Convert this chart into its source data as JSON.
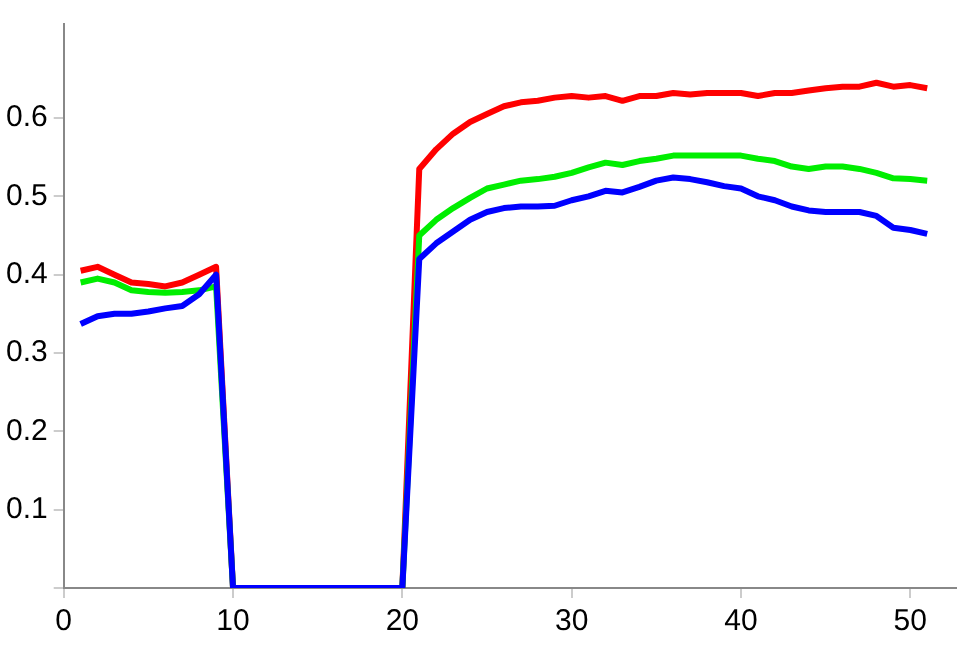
{
  "chart_data": {
    "type": "line",
    "x": [
      1,
      2,
      3,
      4,
      5,
      6,
      7,
      8,
      9,
      10,
      11,
      12,
      13,
      14,
      15,
      16,
      17,
      18,
      19,
      20,
      21,
      22,
      23,
      24,
      25,
      26,
      27,
      28,
      29,
      30,
      31,
      32,
      33,
      34,
      35,
      36,
      37,
      38,
      39,
      40,
      41,
      42,
      43,
      44,
      45,
      46,
      47,
      48,
      49,
      50,
      51
    ],
    "series": [
      {
        "color": "#ff0000",
        "values": [
          0.405,
          0.41,
          0.4,
          0.39,
          0.388,
          0.385,
          0.39,
          0.4,
          0.41,
          0,
          0,
          0,
          0,
          0,
          0,
          0,
          0,
          0,
          0,
          0,
          0.535,
          0.56,
          0.58,
          0.595,
          0.605,
          0.615,
          0.62,
          0.622,
          0.626,
          0.628,
          0.626,
          0.628,
          0.622,
          0.628,
          0.628,
          0.632,
          0.63,
          0.632,
          0.632,
          0.632,
          0.628,
          0.632,
          0.632,
          0.635,
          0.638,
          0.64,
          0.64,
          0.645,
          0.64,
          0.642,
          0.638
        ]
      },
      {
        "color": "#00ee00",
        "values": [
          0.39,
          0.395,
          0.39,
          0.38,
          0.378,
          0.377,
          0.378,
          0.38,
          0.385,
          0,
          0,
          0,
          0,
          0,
          0,
          0,
          0,
          0,
          0,
          0,
          0.45,
          0.47,
          0.485,
          0.498,
          0.51,
          0.515,
          0.52,
          0.522,
          0.525,
          0.53,
          0.537,
          0.543,
          0.54,
          0.545,
          0.548,
          0.552,
          0.552,
          0.552,
          0.552,
          0.552,
          0.548,
          0.545,
          0.538,
          0.535,
          0.538,
          0.538,
          0.535,
          0.53,
          0.523,
          0.522,
          0.52
        ]
      },
      {
        "color": "#0000ff",
        "values": [
          0.337,
          0.347,
          0.35,
          0.35,
          0.353,
          0.357,
          0.36,
          0.375,
          0.4,
          0,
          0,
          0,
          0,
          0,
          0,
          0,
          0,
          0,
          0,
          0,
          0.42,
          0.44,
          0.455,
          0.47,
          0.48,
          0.485,
          0.487,
          0.487,
          0.488,
          0.495,
          0.5,
          0.507,
          0.505,
          0.512,
          0.52,
          0.524,
          0.522,
          0.518,
          0.513,
          0.51,
          0.5,
          0.495,
          0.487,
          0.482,
          0.48,
          0.48,
          0.48,
          0.475,
          0.46,
          0.457,
          0.452
        ]
      }
    ],
    "xlim": [
      0,
      52.7
    ],
    "xticks": [
      0,
      10,
      20,
      30,
      40,
      50
    ],
    "ylim": [
      0,
      0.72
    ],
    "yticks": [
      {
        "value": 0,
        "label": null
      },
      0.1,
      0.2,
      0.3,
      0.4,
      0.5,
      0.6
    ],
    "grid": false,
    "legend": false,
    "marker": "none",
    "line_style": "solid"
  }
}
